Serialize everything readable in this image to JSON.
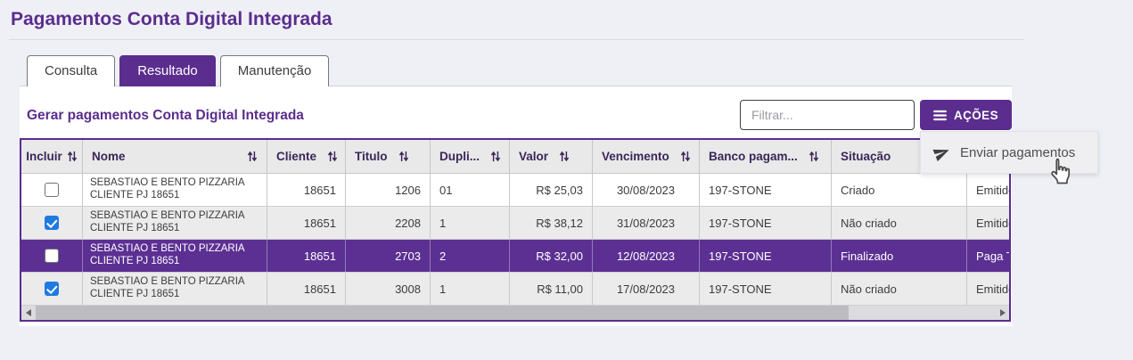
{
  "page": {
    "title": "Pagamentos Conta Digital Integrada"
  },
  "tabs": [
    {
      "label": "Consulta",
      "active": false
    },
    {
      "label": "Resultado",
      "active": true
    },
    {
      "label": "Manutenção",
      "active": false
    }
  ],
  "section": {
    "heading": "Gerar pagamentos Conta Digital Integrada"
  },
  "toolbar": {
    "filter_placeholder": "Filtrar...",
    "actions_label": "AÇÕES"
  },
  "actions_menu": {
    "items": [
      {
        "label": "Enviar pagamentos",
        "icon": "paper-plane-icon"
      }
    ]
  },
  "table": {
    "columns": [
      {
        "key": "incluir",
        "label": "Incluir",
        "sortable": true
      },
      {
        "key": "nome",
        "label": "Nome",
        "sortable": true
      },
      {
        "key": "cliente",
        "label": "Cliente",
        "sortable": true
      },
      {
        "key": "titulo",
        "label": "Titulo",
        "sortable": true
      },
      {
        "key": "duplicata",
        "label": "Dupli...",
        "sortable": true
      },
      {
        "key": "valor",
        "label": "Valor",
        "sortable": true
      },
      {
        "key": "vencimento",
        "label": "Vencimento",
        "sortable": true
      },
      {
        "key": "banco",
        "label": "Banco pagam...",
        "sortable": true
      },
      {
        "key": "situacao",
        "label": "Situação",
        "sortable": false
      },
      {
        "key": "extra",
        "label": "",
        "sortable": false
      }
    ],
    "rows": [
      {
        "checked": false,
        "selected": false,
        "nome": "SEBASTIAO E BENTO PIZZARIA CLIENTE PJ 18651",
        "cliente": "18651",
        "titulo": "1206",
        "duplicata": "01",
        "valor": "R$ 25,03",
        "vencimento": "30/08/2023",
        "banco": "197-STONE",
        "situacao": "Criado",
        "extra": "Emitido"
      },
      {
        "checked": true,
        "selected": false,
        "nome": "SEBASTIAO E BENTO PIZZARIA CLIENTE PJ 18651",
        "cliente": "18651",
        "titulo": "2208",
        "duplicata": "1",
        "valor": "R$ 38,12",
        "vencimento": "31/08/2023",
        "banco": "197-STONE",
        "situacao": "Não criado",
        "extra": "Emitido"
      },
      {
        "checked": false,
        "selected": true,
        "nome": "SEBASTIAO E BENTO PIZZARIA CLIENTE PJ 18651",
        "cliente": "18651",
        "titulo": "2703",
        "duplicata": "2",
        "valor": "R$ 32,00",
        "vencimento": "12/08/2023",
        "banco": "197-STONE",
        "situacao": "Finalizado",
        "extra": "Paga T"
      },
      {
        "checked": true,
        "selected": false,
        "nome": "SEBASTIAO E BENTO PIZZARIA CLIENTE PJ 18651",
        "cliente": "18651",
        "titulo": "3008",
        "duplicata": "1",
        "valor": "R$ 11,00",
        "vencimento": "17/08/2023",
        "banco": "197-STONE",
        "situacao": "Não criado",
        "extra": "Emitido"
      }
    ]
  },
  "colors": {
    "accent_purple": "#5b2d8e",
    "selected_row_purple": "#5c3093",
    "checkbox_checked_blue": "#1f7ae0",
    "header_bg": "#e9e9ea",
    "stripe_bg": "#ebebec",
    "page_bg": "#eff0f5"
  }
}
